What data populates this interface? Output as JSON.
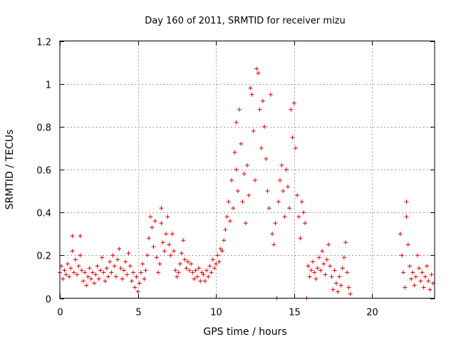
{
  "chart_data": {
    "type": "scatter",
    "title": "Day 160 of 2011, SRMTID for receiver mizu",
    "xlabel": "GPS time / hours",
    "ylabel": "SRMTID / TECUs",
    "xlim": [
      0,
      24
    ],
    "ylim": [
      0,
      1.2
    ],
    "xticks": [
      0,
      5,
      10,
      15,
      20
    ],
    "yticks": [
      0,
      0.2,
      0.4,
      0.6,
      0.8,
      1,
      1.2
    ],
    "ytick_labels": [
      "0",
      "0.2",
      "0.4",
      "0.6",
      "0.8",
      "1",
      "1.2"
    ],
    "grid": true,
    "marker": "+",
    "color": "#e00000",
    "series": [
      {
        "name": "SRMTID",
        "points": [
          [
            0.0,
            0.12
          ],
          [
            0.1,
            0.15
          ],
          [
            0.2,
            0.09
          ],
          [
            0.3,
            0.13
          ],
          [
            0.4,
            0.11
          ],
          [
            0.5,
            0.16
          ],
          [
            0.6,
            0.1
          ],
          [
            0.7,
            0.14
          ],
          [
            0.8,
            0.29
          ],
          [
            0.8,
            0.22
          ],
          [
            0.9,
            0.12
          ],
          [
            1.0,
            0.18
          ],
          [
            1.1,
            0.11
          ],
          [
            1.2,
            0.15
          ],
          [
            1.3,
            0.29
          ],
          [
            1.3,
            0.2
          ],
          [
            1.4,
            0.13
          ],
          [
            1.5,
            0.08
          ],
          [
            1.6,
            0.12
          ],
          [
            1.7,
            0.06
          ],
          [
            1.8,
            0.1
          ],
          [
            1.9,
            0.14
          ],
          [
            2.0,
            0.09
          ],
          [
            2.1,
            0.12
          ],
          [
            2.2,
            0.07
          ],
          [
            2.3,
            0.11
          ],
          [
            2.4,
            0.15
          ],
          [
            2.5,
            0.09
          ],
          [
            2.6,
            0.13
          ],
          [
            2.7,
            0.19
          ],
          [
            2.8,
            0.12
          ],
          [
            2.9,
            0.08
          ],
          [
            3.0,
            0.14
          ],
          [
            3.1,
            0.1
          ],
          [
            3.2,
            0.17
          ],
          [
            3.3,
            0.12
          ],
          [
            3.4,
            0.2
          ],
          [
            3.5,
            0.15
          ],
          [
            3.6,
            0.1
          ],
          [
            3.7,
            0.18
          ],
          [
            3.8,
            0.23
          ],
          [
            3.9,
            0.14
          ],
          [
            4.0,
            0.09
          ],
          [
            4.1,
            0.13
          ],
          [
            4.2,
            0.17
          ],
          [
            4.3,
            0.11
          ],
          [
            4.4,
            0.21
          ],
          [
            4.5,
            0.15
          ],
          [
            4.6,
            0.08
          ],
          [
            4.7,
            0.12
          ],
          [
            4.8,
            0.05
          ],
          [
            4.9,
            0.1
          ],
          [
            5.0,
            0.03
          ],
          [
            5.1,
            0.07
          ],
          [
            5.2,
            0.12
          ],
          [
            5.3,
            0.16
          ],
          [
            5.4,
            0.09
          ],
          [
            5.5,
            0.13
          ],
          [
            5.6,
            0.2
          ],
          [
            5.7,
            0.28
          ],
          [
            5.8,
            0.38
          ],
          [
            5.9,
            0.33
          ],
          [
            6.0,
            0.24
          ],
          [
            6.1,
            0.36
          ],
          [
            6.2,
            0.19
          ],
          [
            6.3,
            0.12
          ],
          [
            6.4,
            0.16
          ],
          [
            6.5,
            0.42
          ],
          [
            6.5,
            0.35
          ],
          [
            6.6,
            0.26
          ],
          [
            6.7,
            0.22
          ],
          [
            6.8,
            0.3
          ],
          [
            6.9,
            0.38
          ],
          [
            7.0,
            0.25
          ],
          [
            7.1,
            0.2
          ],
          [
            7.2,
            0.3
          ],
          [
            7.3,
            0.22
          ],
          [
            7.4,
            0.13
          ],
          [
            7.5,
            0.1
          ],
          [
            7.6,
            0.12
          ],
          [
            7.7,
            0.16
          ],
          [
            7.8,
            0.21
          ],
          [
            7.9,
            0.27
          ],
          [
            8.0,
            0.18
          ],
          [
            8.1,
            0.14
          ],
          [
            8.2,
            0.17
          ],
          [
            8.3,
            0.13
          ],
          [
            8.4,
            0.16
          ],
          [
            8.5,
            0.12
          ],
          [
            8.6,
            0.09
          ],
          [
            8.7,
            0.13
          ],
          [
            8.8,
            0.1
          ],
          [
            8.9,
            0.14
          ],
          [
            9.0,
            0.08
          ],
          [
            9.1,
            0.12
          ],
          [
            9.2,
            0.11
          ],
          [
            9.3,
            0.08
          ],
          [
            9.4,
            0.13
          ],
          [
            9.5,
            0.1
          ],
          [
            9.6,
            0.15
          ],
          [
            9.7,
            0.12
          ],
          [
            9.8,
            0.18
          ],
          [
            9.9,
            0.14
          ],
          [
            10.0,
            0.16
          ],
          [
            10.1,
            0.2
          ],
          [
            10.2,
            0.17
          ],
          [
            10.3,
            0.23
          ],
          [
            10.4,
            0.22
          ],
          [
            10.5,
            0.27
          ],
          [
            10.6,
            0.32
          ],
          [
            10.7,
            0.38
          ],
          [
            10.8,
            0.45
          ],
          [
            10.9,
            0.36
          ],
          [
            11.0,
            0.55
          ],
          [
            11.1,
            0.42
          ],
          [
            11.2,
            0.68
          ],
          [
            11.3,
            0.82
          ],
          [
            11.3,
            0.6
          ],
          [
            11.4,
            0.5
          ],
          [
            11.5,
            0.88
          ],
          [
            11.6,
            0.72
          ],
          [
            11.7,
            0.45
          ],
          [
            11.8,
            0.58
          ],
          [
            11.9,
            0.35
          ],
          [
            12.0,
            0.62
          ],
          [
            12.1,
            0.48
          ],
          [
            12.2,
            0.98
          ],
          [
            12.3,
            0.95
          ],
          [
            12.4,
            0.78
          ],
          [
            12.5,
            0.55
          ],
          [
            12.6,
            1.07
          ],
          [
            12.7,
            1.05
          ],
          [
            12.8,
            0.88
          ],
          [
            12.9,
            0.7
          ],
          [
            13.0,
            0.92
          ],
          [
            13.1,
            0.8
          ],
          [
            13.2,
            0.65
          ],
          [
            13.3,
            0.5
          ],
          [
            13.4,
            0.42
          ],
          [
            13.5,
            0.95
          ],
          [
            13.6,
            0.3
          ],
          [
            13.7,
            0.25
          ],
          [
            13.8,
            0.35
          ],
          [
            13.9,
            0.0
          ],
          [
            14.0,
            0.45
          ],
          [
            14.1,
            0.55
          ],
          [
            14.2,
            0.62
          ],
          [
            14.3,
            0.5
          ],
          [
            14.4,
            0.38
          ],
          [
            14.5,
            0.6
          ],
          [
            14.6,
            0.52
          ],
          [
            14.7,
            0.42
          ],
          [
            14.8,
            0.88
          ],
          [
            14.9,
            0.75
          ],
          [
            15.0,
            0.91
          ],
          [
            15.1,
            0.7
          ],
          [
            15.2,
            0.48
          ],
          [
            15.3,
            0.38
          ],
          [
            15.4,
            0.28
          ],
          [
            15.5,
            0.45
          ],
          [
            15.6,
            0.4
          ],
          [
            15.7,
            0.35
          ],
          [
            15.8,
            0.0
          ],
          [
            15.9,
            0.15
          ],
          [
            16.0,
            0.1
          ],
          [
            16.1,
            0.13
          ],
          [
            16.2,
            0.17
          ],
          [
            16.3,
            0.12
          ],
          [
            16.4,
            0.09
          ],
          [
            16.5,
            0.14
          ],
          [
            16.6,
            0.19
          ],
          [
            16.7,
            0.13
          ],
          [
            16.8,
            0.22
          ],
          [
            16.9,
            0.16
          ],
          [
            17.0,
            0.11
          ],
          [
            17.1,
            0.18
          ],
          [
            17.2,
            0.25
          ],
          [
            17.3,
            0.15
          ],
          [
            17.4,
            0.1
          ],
          [
            17.5,
            0.04
          ],
          [
            17.6,
            0.13
          ],
          [
            17.7,
            0.07
          ],
          [
            17.8,
            0.03
          ],
          [
            17.9,
            0.1
          ],
          [
            18.0,
            0.06
          ],
          [
            18.1,
            0.14
          ],
          [
            18.2,
            0.19
          ],
          [
            18.3,
            0.26
          ],
          [
            18.4,
            0.12
          ],
          [
            18.5,
            0.05
          ],
          [
            18.6,
            0.02
          ],
          [
            21.8,
            0.3
          ],
          [
            21.9,
            0.2
          ],
          [
            22.0,
            0.12
          ],
          [
            22.1,
            0.05
          ],
          [
            22.2,
            0.45
          ],
          [
            22.2,
            0.38
          ],
          [
            22.3,
            0.25
          ],
          [
            22.4,
            0.15
          ],
          [
            22.5,
            0.09
          ],
          [
            22.6,
            0.12
          ],
          [
            22.7,
            0.06
          ],
          [
            22.8,
            0.1
          ],
          [
            22.9,
            0.2
          ],
          [
            23.0,
            0.14
          ],
          [
            23.1,
            0.08
          ],
          [
            23.2,
            0.12
          ],
          [
            23.3,
            0.05
          ],
          [
            23.4,
            0.1
          ],
          [
            23.5,
            0.15
          ],
          [
            23.6,
            0.08
          ],
          [
            23.7,
            0.04
          ],
          [
            23.8,
            0.11
          ],
          [
            23.9,
            0.07
          ]
        ]
      }
    ]
  }
}
